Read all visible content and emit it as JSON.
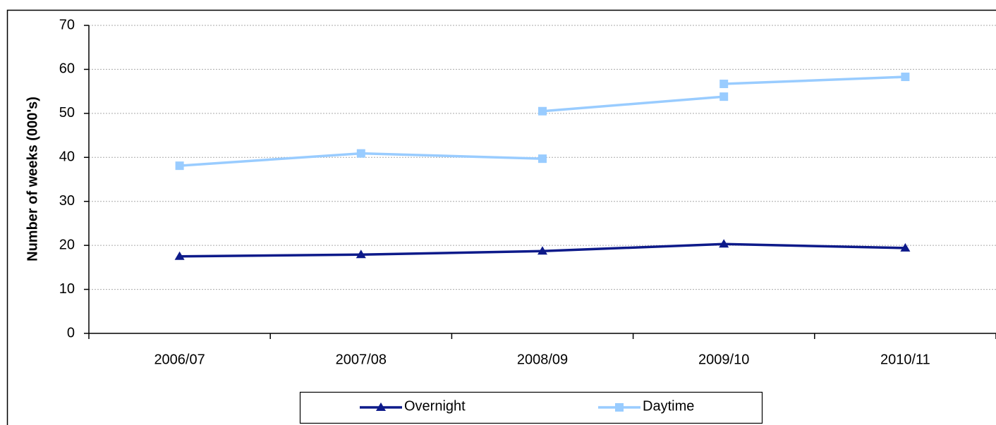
{
  "chart_data": {
    "type": "line",
    "y_label": "Number of weeks (000's)",
    "categories": [
      "2006/07",
      "2007/08",
      "2008/09",
      "2009/10",
      "2010/11"
    ],
    "series": [
      {
        "name": "Overnight",
        "color": "#0d1a8a",
        "marker": "triangle",
        "values": [
          17.5,
          17.9,
          18.7,
          20.3,
          19.4
        ]
      },
      {
        "name": "Daytime",
        "color": "#99ccff",
        "marker": "square",
        "values": [
          38.1,
          40.9,
          39.7,
          null,
          null
        ]
      },
      {
        "color": "#99ccff",
        "marker": "square",
        "values": [
          null,
          null,
          50.5,
          53.8,
          null
        ]
      },
      {
        "color": "#99ccff",
        "marker": "square",
        "values": [
          null,
          null,
          null,
          56.7,
          58.3
        ]
      }
    ],
    "ylim": [
      0,
      70
    ],
    "yticks": [
      0,
      10,
      20,
      30,
      40,
      50,
      60,
      70
    ],
    "grid": true
  }
}
